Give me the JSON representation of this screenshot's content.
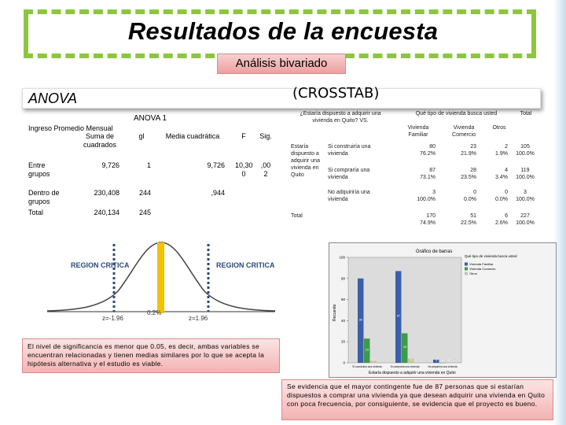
{
  "header": {
    "title": "Resultados de la encuesta",
    "subtitle": "Análisis bivariado",
    "anova_label": "ANOVA",
    "crosstab_label": "(CROSSTAB)"
  },
  "anova_table": {
    "caption": "ANOVA 1",
    "dependent": "Ingreso Promedio Mensual",
    "columns": [
      "Suma de cuadrados",
      "gl",
      "Media cuadrática",
      "F",
      "Sig."
    ],
    "rows": [
      {
        "label": "Entre grupos",
        "values": [
          "9,726",
          "1",
          "9,726",
          "10,30 0",
          ",00 2"
        ]
      },
      {
        "label": "Dentro de grupos",
        "values": [
          "230,408",
          "244",
          ",944",
          "",
          ""
        ]
      },
      {
        "label": "Total",
        "values": [
          "240,134",
          "245",
          "",
          "",
          ""
        ]
      }
    ]
  },
  "crosstab": {
    "question_row": "¿Estaría dispuesto a adquirir una vivienda en Quito? VS.",
    "question_col": "Qué tipo de vivienda busca usted",
    "col_headers": [
      "Vivienda Familiar",
      "Vivienda Comercio",
      "Otros",
      "Total"
    ],
    "row_group": "Estaría dispuesto a adquirir una vivienda en Quito",
    "rows": [
      {
        "label": "Si construiría una vivienda",
        "counts": [
          "80",
          "23",
          "2",
          "105"
        ],
        "pcts": [
          "76.2%",
          "21.9%",
          "1.9%",
          "100.0%"
        ]
      },
      {
        "label": "Si compraría una vivienda",
        "counts": [
          "87",
          "28",
          "4",
          "119"
        ],
        "pcts": [
          "73.1%",
          "23.5%",
          "3.4%",
          "100.0%"
        ]
      },
      {
        "label": "No adquiriría una vivienda",
        "counts": [
          "3",
          "0",
          "0",
          "3"
        ],
        "pcts": [
          "100.0%",
          "0.0%",
          "0.0%",
          "100.0%"
        ]
      }
    ],
    "total": {
      "label": "Total",
      "counts": [
        "170",
        "51",
        "6",
        "227"
      ],
      "pcts": [
        "74.9%",
        "22.5%",
        "2.6%",
        "100.0%"
      ]
    }
  },
  "distribution": {
    "left_region": "REGION CRITICA",
    "right_region": "REGION CRITICA",
    "z_left": "z=-1.96",
    "z_right": "z=1.96",
    "sig": "0.2%"
  },
  "chart_data": {
    "type": "bar",
    "title": "Gráfico de barras",
    "xlabel": "Estaría dispuesto a adquirir una vivienda en Quito",
    "ylabel": "Recuento",
    "legend_title": "Qué tipo de vivienda busca usted",
    "categories": [
      "Si construiría una vivienda",
      "Si compraría una vivienda",
      "No adquiriría una vivienda"
    ],
    "ylim": [
      0,
      100
    ],
    "yticks": [
      "0",
      "20",
      "40",
      "60",
      "80",
      "100"
    ],
    "series": [
      {
        "name": "Vivienda Familiar",
        "values": [
          80,
          87,
          3
        ],
        "color": "#3b5fa8"
      },
      {
        "name": "Vivienda Comercio",
        "values": [
          23,
          28,
          0
        ],
        "color": "#3d9a4a"
      },
      {
        "name": "Otros",
        "values": [
          2,
          4,
          0
        ],
        "color": "#c9c3a0"
      }
    ]
  },
  "notes": {
    "left": "El nivel de significancia es menor que 0.05, es decir, ambas variables se encuentran relacionadas y tienen medias similares por lo que se acepta la hipótesis alternativa y el estudio es viable.",
    "right": "Se evidencia que el mayor contingente fue de 87 personas que si estarían dispuestos a comprar una vivienda ya que desean adquirir una vivienda en Quito con poca frecuencia, por consiguiente, se evidencia que el proyecto es bueno."
  },
  "colors": {
    "accent_green": "#8cc63f",
    "note_pink": "#f4b3b3",
    "critical_blue": "#2b4a7a",
    "mean_line": "#f3c200"
  }
}
